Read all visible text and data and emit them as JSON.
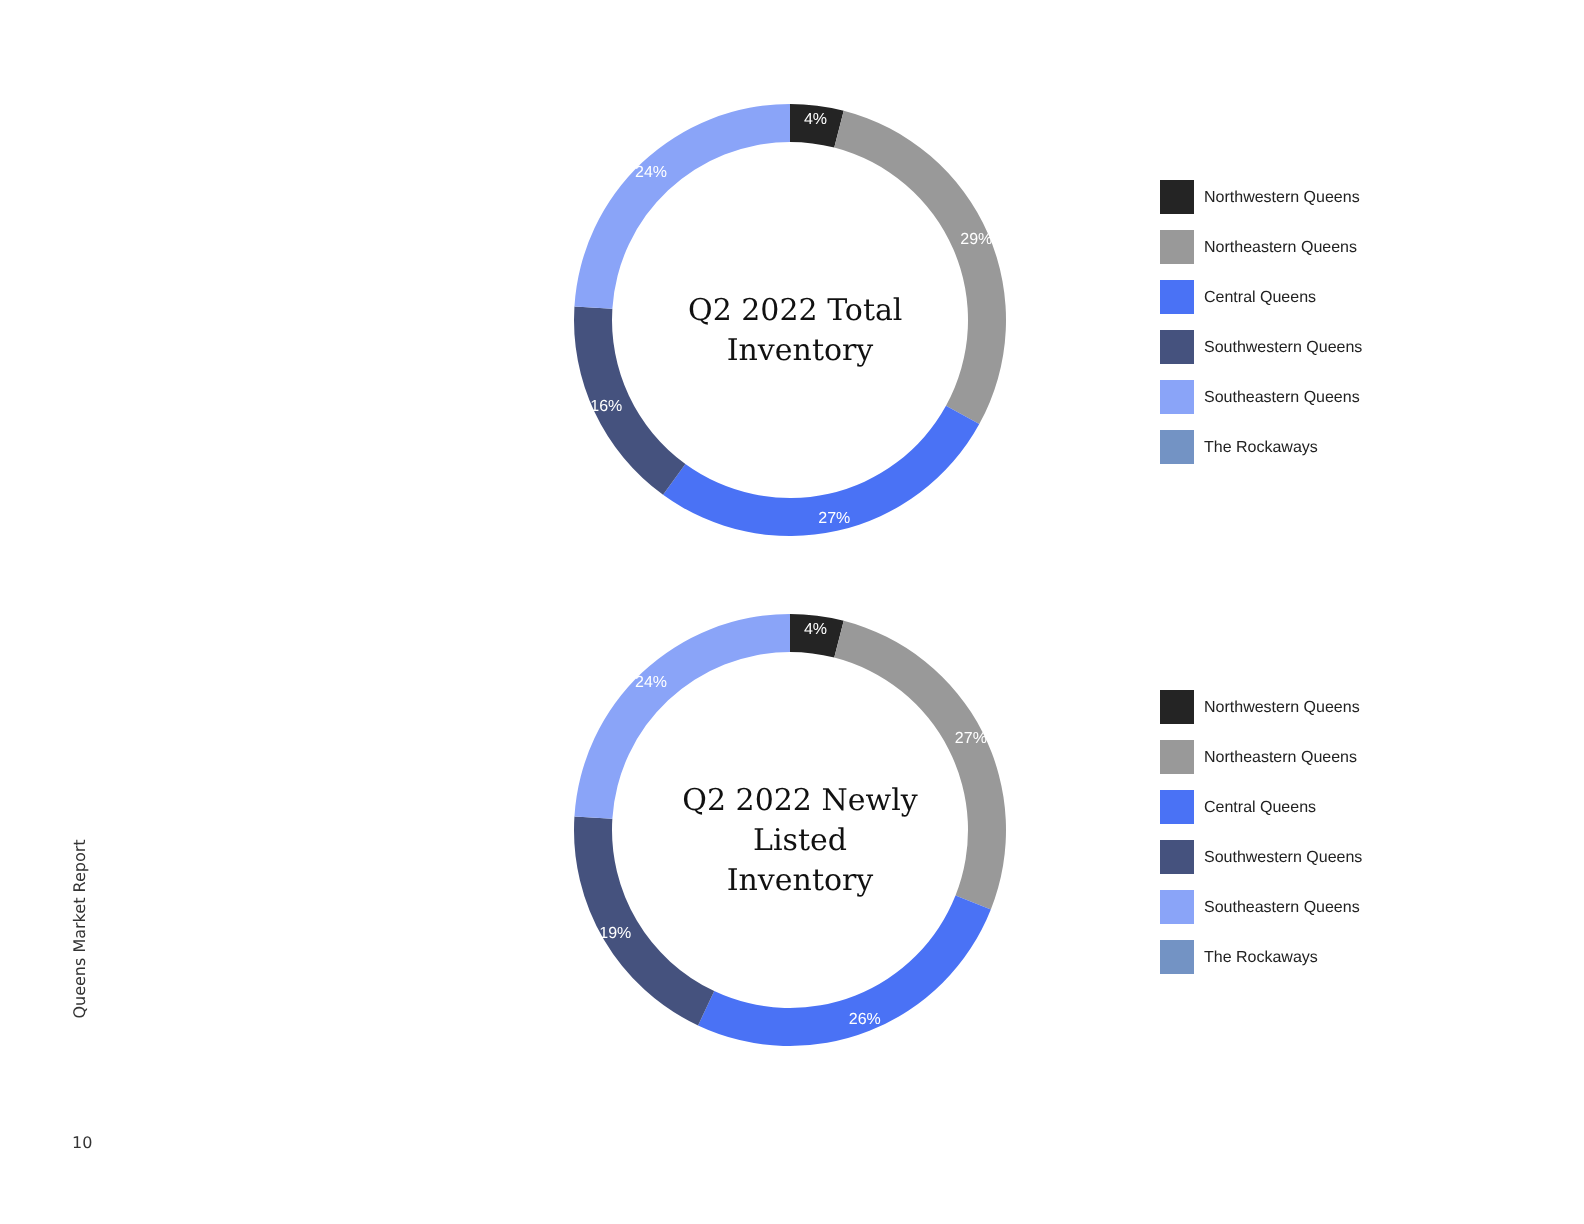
{
  "chart_data": [
    {
      "type": "donut",
      "title": "Q2 2022 Total Inventory",
      "categories": [
        "Northwestern Queens",
        "Northeastern Queens",
        "Central Queens",
        "Southwestern Queens",
        "Southeastern Queens",
        "The Rockaways"
      ],
      "values": [
        4,
        29,
        27,
        16,
        24,
        0
      ],
      "value_labels": [
        "4%",
        "29%",
        "27%",
        "16%",
        "24%",
        null
      ],
      "colors": [
        "#242424",
        "#999999",
        "#4a72f5",
        "#45527e",
        "#8aa4f8",
        "#7393c4"
      ],
      "legend": "right",
      "annotations": [
        "Queens Market Report",
        "10"
      ]
    },
    {
      "type": "donut",
      "title": "Q2 2022 Newly Listed Inventory",
      "categories": [
        "Northwestern Queens",
        "Northeastern Queens",
        "Central Queens",
        "Southwestern Queens",
        "Southeastern Queens",
        "The Rockaways"
      ],
      "values": [
        4,
        27,
        26,
        19,
        24,
        0
      ],
      "value_labels": [
        "4%",
        "27%",
        "26%",
        "19%",
        "24%",
        null
      ],
      "colors": [
        "#242424",
        "#999999",
        "#4a72f5",
        "#45527e",
        "#8aa4f8",
        "#7393c4"
      ],
      "legend": "right"
    }
  ]
}
